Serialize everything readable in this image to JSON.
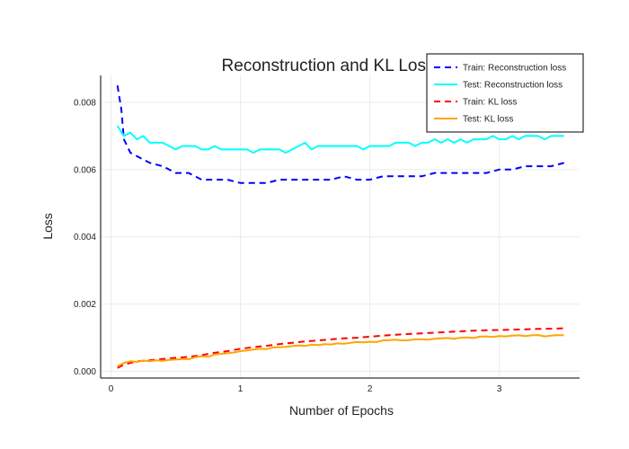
{
  "chart_data": {
    "type": "line",
    "title": "Reconstruction and KL Loss",
    "xlabel": "Number of Epochs",
    "ylabel": "Loss",
    "xlim": [
      -0.08,
      3.62
    ],
    "ylim": [
      -0.0002,
      0.0088
    ],
    "xticks": [
      0,
      1,
      2,
      3
    ],
    "xtick_labels": [
      "0",
      "1",
      "2",
      "3"
    ],
    "yticks": [
      0,
      0.002,
      0.004,
      0.006,
      0.008
    ],
    "ytick_labels": [
      "0.000",
      "0.002",
      "0.004",
      "0.006",
      "0.008"
    ],
    "grid": true,
    "legend_position": "top-right",
    "series": [
      {
        "name": "Train: Reconstruction loss",
        "color": "#0000ff",
        "dash": "dashed",
        "x": [
          0.05,
          0.08,
          0.1,
          0.15,
          0.2,
          0.3,
          0.4,
          0.5,
          0.6,
          0.7,
          0.8,
          0.9,
          1.0,
          1.1,
          1.2,
          1.3,
          1.4,
          1.5,
          1.6,
          1.7,
          1.8,
          1.9,
          2.0,
          2.1,
          2.2,
          2.3,
          2.4,
          2.5,
          2.6,
          2.7,
          2.8,
          2.9,
          3.0,
          3.1,
          3.2,
          3.3,
          3.4,
          3.5
        ],
        "y": [
          0.0085,
          0.0078,
          0.0069,
          0.0065,
          0.0064,
          0.0062,
          0.0061,
          0.0059,
          0.0059,
          0.0057,
          0.0057,
          0.0057,
          0.0056,
          0.0056,
          0.0056,
          0.0057,
          0.0057,
          0.0057,
          0.0057,
          0.0057,
          0.0058,
          0.0057,
          0.0057,
          0.0058,
          0.0058,
          0.0058,
          0.0058,
          0.0059,
          0.0059,
          0.0059,
          0.0059,
          0.0059,
          0.006,
          0.006,
          0.0061,
          0.0061,
          0.0061,
          0.0062
        ]
      },
      {
        "name": "Test: Reconstruction loss",
        "color": "#00ffff",
        "dash": "solid",
        "x": [
          0.05,
          0.1,
          0.15,
          0.2,
          0.25,
          0.3,
          0.35,
          0.4,
          0.45,
          0.5,
          0.55,
          0.6,
          0.65,
          0.7,
          0.75,
          0.8,
          0.85,
          0.9,
          0.95,
          1.0,
          1.05,
          1.1,
          1.15,
          1.2,
          1.25,
          1.3,
          1.35,
          1.4,
          1.45,
          1.5,
          1.55,
          1.6,
          1.65,
          1.7,
          1.75,
          1.8,
          1.85,
          1.9,
          1.95,
          2.0,
          2.05,
          2.1,
          2.15,
          2.2,
          2.25,
          2.3,
          2.35,
          2.4,
          2.45,
          2.5,
          2.55,
          2.6,
          2.65,
          2.7,
          2.75,
          2.8,
          2.85,
          2.9,
          2.95,
          3.0,
          3.05,
          3.1,
          3.15,
          3.2,
          3.25,
          3.3,
          3.35,
          3.4,
          3.45,
          3.5
        ],
        "y": [
          0.0073,
          0.007,
          0.0071,
          0.0069,
          0.007,
          0.0068,
          0.0068,
          0.0068,
          0.0067,
          0.0066,
          0.0067,
          0.0067,
          0.0067,
          0.0066,
          0.0066,
          0.0067,
          0.0066,
          0.0066,
          0.0066,
          0.0066,
          0.0066,
          0.0065,
          0.0066,
          0.0066,
          0.0066,
          0.0066,
          0.0065,
          0.0066,
          0.0067,
          0.0068,
          0.0066,
          0.0067,
          0.0067,
          0.0067,
          0.0067,
          0.0067,
          0.0067,
          0.0067,
          0.0066,
          0.0067,
          0.0067,
          0.0067,
          0.0067,
          0.0068,
          0.0068,
          0.0068,
          0.0067,
          0.0068,
          0.0068,
          0.0069,
          0.0068,
          0.0069,
          0.0068,
          0.0069,
          0.0068,
          0.0069,
          0.0069,
          0.0069,
          0.007,
          0.0069,
          0.0069,
          0.007,
          0.0069,
          0.007,
          0.007,
          0.007,
          0.0069,
          0.007,
          0.007,
          0.007
        ]
      },
      {
        "name": "Train: KL loss",
        "color": "#ff0000",
        "dash": "dashed",
        "x": [
          0.05,
          0.1,
          0.2,
          0.3,
          0.4,
          0.5,
          0.6,
          0.7,
          0.8,
          0.9,
          1.0,
          1.1,
          1.2,
          1.3,
          1.4,
          1.5,
          1.6,
          1.7,
          1.8,
          1.9,
          2.0,
          2.1,
          2.2,
          2.3,
          2.4,
          2.5,
          2.6,
          2.7,
          2.8,
          2.9,
          3.0,
          3.1,
          3.2,
          3.3,
          3.4,
          3.5
        ],
        "y": [
          0.0001,
          0.0002,
          0.0003,
          0.00033,
          0.00037,
          0.0004,
          0.00043,
          0.00048,
          0.00055,
          0.0006,
          0.00067,
          0.00072,
          0.00076,
          0.00081,
          0.00085,
          0.00089,
          0.00092,
          0.00095,
          0.00098,
          0.001,
          0.00103,
          0.00106,
          0.00109,
          0.00111,
          0.00113,
          0.00115,
          0.00117,
          0.00119,
          0.00121,
          0.00122,
          0.00123,
          0.00124,
          0.00125,
          0.00126,
          0.00127,
          0.00128
        ]
      },
      {
        "name": "Test: KL loss",
        "color": "#ffa500",
        "dash": "solid",
        "x": [
          0.05,
          0.1,
          0.15,
          0.2,
          0.25,
          0.3,
          0.35,
          0.4,
          0.45,
          0.5,
          0.55,
          0.6,
          0.65,
          0.7,
          0.75,
          0.8,
          0.85,
          0.9,
          0.95,
          1.0,
          1.05,
          1.1,
          1.15,
          1.2,
          1.25,
          1.3,
          1.35,
          1.4,
          1.45,
          1.5,
          1.55,
          1.6,
          1.65,
          1.7,
          1.75,
          1.8,
          1.85,
          1.9,
          1.95,
          2.0,
          2.05,
          2.1,
          2.15,
          2.2,
          2.25,
          2.3,
          2.35,
          2.4,
          2.45,
          2.5,
          2.55,
          2.6,
          2.65,
          2.7,
          2.75,
          2.8,
          2.85,
          2.9,
          2.95,
          3.0,
          3.05,
          3.1,
          3.15,
          3.2,
          3.25,
          3.3,
          3.35,
          3.4,
          3.45,
          3.5
        ],
        "y": [
          0.00015,
          0.00025,
          0.0003,
          0.00028,
          0.00032,
          0.0003,
          0.00033,
          0.00031,
          0.00034,
          0.00035,
          0.00037,
          0.00036,
          0.00042,
          0.00045,
          0.00043,
          0.0005,
          0.00052,
          0.00054,
          0.00056,
          0.0006,
          0.00062,
          0.00065,
          0.00067,
          0.00066,
          0.00071,
          0.00072,
          0.00073,
          0.00075,
          0.00077,
          0.00076,
          0.00079,
          0.00078,
          0.00081,
          0.0008,
          0.00083,
          0.00082,
          0.00085,
          0.00087,
          0.00086,
          0.00088,
          0.00087,
          0.00092,
          0.00093,
          0.00094,
          0.00092,
          0.00093,
          0.00095,
          0.00095,
          0.00094,
          0.00097,
          0.00098,
          0.00099,
          0.00097,
          0.001,
          0.00101,
          0.00099,
          0.00103,
          0.00104,
          0.00102,
          0.00105,
          0.00104,
          0.00106,
          0.00107,
          0.00105,
          0.00107,
          0.00108,
          0.00104,
          0.00106,
          0.00108,
          0.00107
        ]
      }
    ]
  }
}
